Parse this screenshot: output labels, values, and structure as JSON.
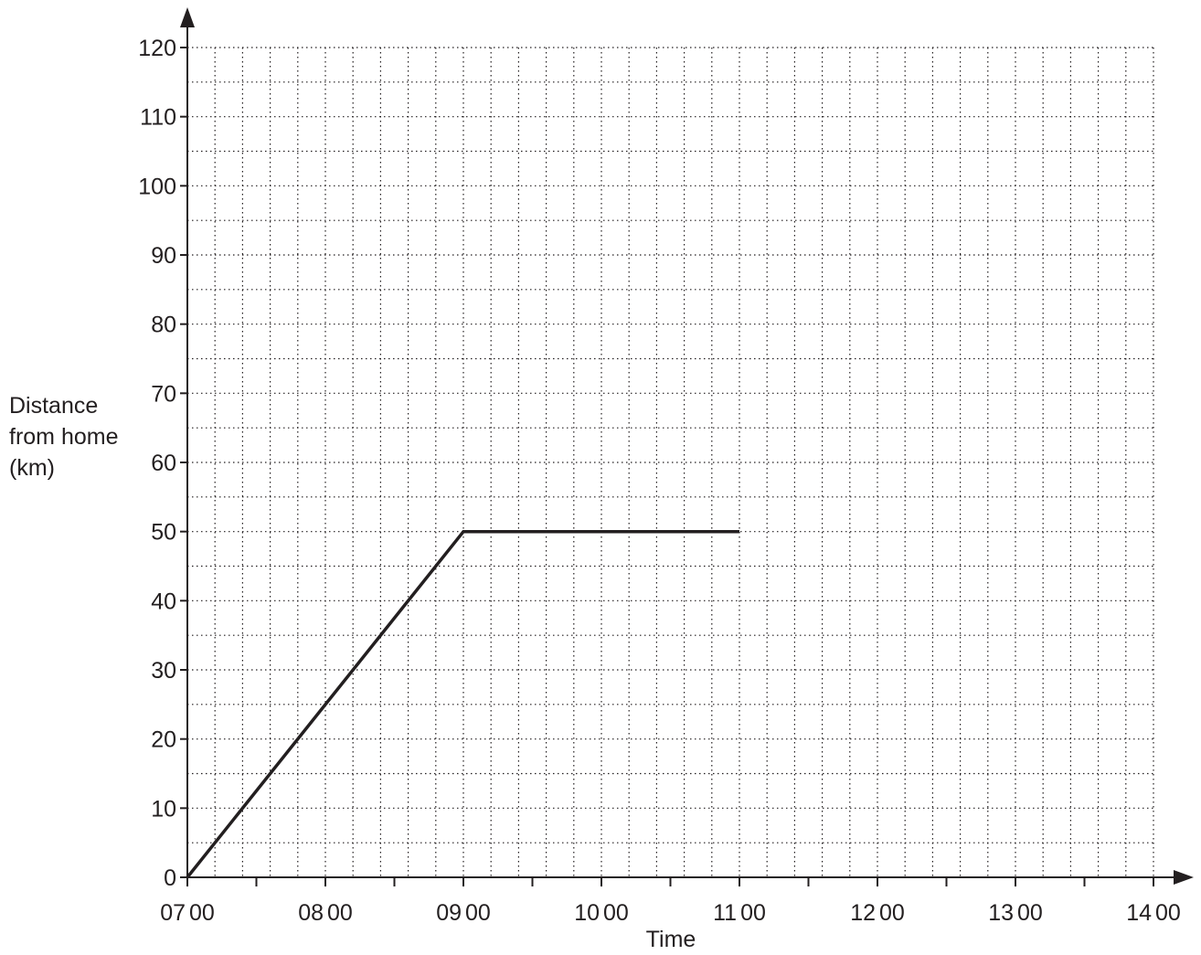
{
  "chart_data": {
    "type": "line",
    "xlabel": "Time",
    "ylabel_lines": [
      "Distance",
      "from home",
      "(km)"
    ],
    "x_ticks": [
      {
        "value": 7,
        "hour": "07",
        "min": "00"
      },
      {
        "value": 8,
        "hour": "08",
        "min": "00"
      },
      {
        "value": 9,
        "hour": "09",
        "min": "00"
      },
      {
        "value": 10,
        "hour": "10",
        "min": "00"
      },
      {
        "value": 11,
        "hour": "11",
        "min": "00"
      },
      {
        "value": 12,
        "hour": "12",
        "min": "00"
      },
      {
        "value": 13,
        "hour": "13",
        "min": "00"
      },
      {
        "value": 14,
        "hour": "14",
        "min": "00"
      }
    ],
    "y_ticks": [
      0,
      10,
      20,
      30,
      40,
      50,
      60,
      70,
      80,
      90,
      100,
      110,
      120
    ],
    "xlim": [
      "07:00",
      "14:00"
    ],
    "ylim": [
      0,
      120
    ],
    "grid": "dotted, every 5 km and every 12 minutes",
    "series": [
      {
        "x": [
          "07:00",
          "09:00",
          "11:00"
        ],
        "y": [
          0,
          50,
          50
        ]
      }
    ],
    "colors": {
      "line": "#231f20",
      "grid": "#231f20"
    }
  }
}
